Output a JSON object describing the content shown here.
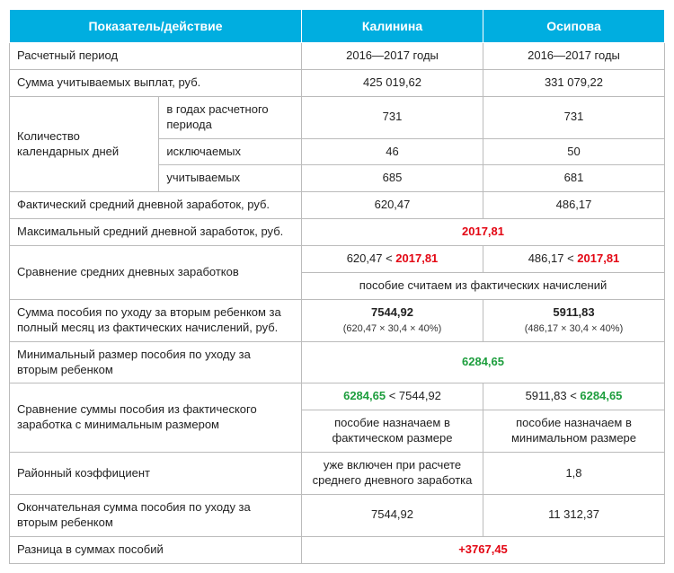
{
  "header": {
    "indicator": "Показатель/действие",
    "col1": "Калинина",
    "col2": "Осипова"
  },
  "rows": {
    "period_label": "Расчетный период",
    "period_val": "2016—2017 годы",
    "sum_pay_label": "Сумма учитываемых выплат, руб.",
    "sum_pay_1": "425 019,62",
    "sum_pay_2": "331 079,22",
    "days_group": "Количество календарных дней",
    "days_in_years": "в годах расчетного периода",
    "days_in_years_v": "731",
    "days_excl": "исключаемых",
    "days_excl_1": "46",
    "days_excl_2": "50",
    "days_count": "учитываемых",
    "days_count_1": "685",
    "days_count_2": "681",
    "fact_avg_label": "Фактический средний дневной заработок, руб.",
    "fact_avg_1": "620,47",
    "fact_avg_2": "486,17",
    "max_avg_label": "Максимальный средний дневной заработок, руб.",
    "max_avg_v": "2017,81",
    "compare_avg_label": "Сравнение средних дневных заработков",
    "cmp1_a": "620,47 < ",
    "cmp1_b": "2017,81",
    "cmp2_a": "486,17  < ",
    "cmp2_b": "2017,81",
    "compare_note": "пособие считаем из фактических начислений",
    "benefit_full_label": "Сумма пособия по уходу за вторым ребенком за полный месяц из фактических начислений, руб.",
    "benefit_full_1": "7544,92",
    "benefit_full_1f": "(620,47 × 30,4 × 40%)",
    "benefit_full_2": "5911,83",
    "benefit_full_2f": "(486,17 × 30,4 × 40%)",
    "min_benefit_label": "Минимальный размер пособия по уходу за вторым ребенком",
    "min_benefit_v": "6284,65",
    "compare_min_label": "Сравнение суммы пособия из фактического заработка с минимальным размером",
    "cm1_a": "6284,65",
    "cm1_b": " < 7544,92",
    "cm2_a": "5911,83 < ",
    "cm2_b": "6284,65",
    "assign_1": "пособие назначаем в фактическом размере",
    "assign_2": "пособие назначаем в минимальном размере",
    "region_label": "Районный коэффициент",
    "region_1": "уже включен при расчете среднего дневного заработка",
    "region_2": "1,8",
    "final_label": "Окончательная сумма пособия по уходу за вторым ребенком",
    "final_1": "7544,92",
    "final_2": "11 312,37",
    "diff_label": "Разница в суммах пособий",
    "diff_v": "+3767,45"
  }
}
